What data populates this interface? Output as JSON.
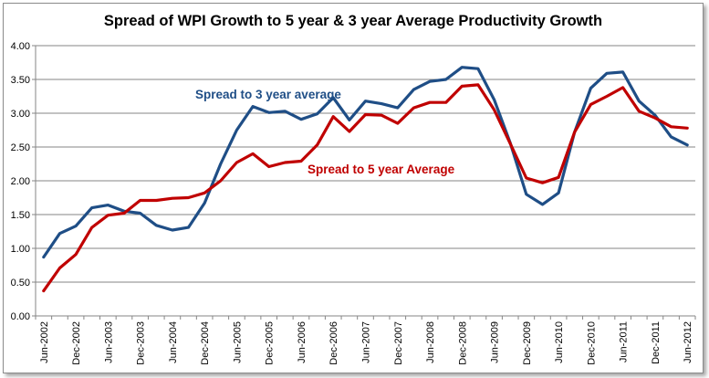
{
  "chart_data": {
    "type": "line",
    "title": "Spread of WPI Growth to 5 year & 3 year Average Productivity Growth",
    "xlabel": "",
    "ylabel": "",
    "ylim": [
      0,
      4
    ],
    "yticks": [
      "0.00",
      "0.50",
      "1.00",
      "1.50",
      "2.00",
      "2.50",
      "3.00",
      "3.50",
      "4.00"
    ],
    "grid": true,
    "x_labels": [
      "Jun-2002",
      "Dec-2002",
      "Jun-2003",
      "Dec-2003",
      "Jun-2004",
      "Dec-2004",
      "Jun-2005",
      "Dec-2005",
      "Jun-2006",
      "Dec-2006",
      "Jun-2007",
      "Dec-2007",
      "Jun-2008",
      "Dec-2008",
      "Jun-2009",
      "Dec-2009",
      "Jun-2010",
      "Dec-2010",
      "Jun-2011",
      "Dec-2011",
      "Jun-2012"
    ],
    "x": [
      "Jun-2002",
      "Sep-2002",
      "Dec-2002",
      "Mar-2003",
      "Jun-2003",
      "Sep-2003",
      "Dec-2003",
      "Mar-2004",
      "Jun-2004",
      "Sep-2004",
      "Dec-2004",
      "Mar-2005",
      "Jun-2005",
      "Sep-2005",
      "Dec-2005",
      "Mar-2006",
      "Jun-2006",
      "Sep-2006",
      "Dec-2006",
      "Mar-2007",
      "Jun-2007",
      "Sep-2007",
      "Dec-2007",
      "Mar-2008",
      "Jun-2008",
      "Sep-2008",
      "Dec-2008",
      "Mar-2009",
      "Jun-2009",
      "Sep-2009",
      "Dec-2009",
      "Mar-2010",
      "Jun-2010",
      "Sep-2010",
      "Dec-2010",
      "Mar-2011",
      "Jun-2011",
      "Sep-2011",
      "Dec-2011",
      "Mar-2012",
      "Jun-2012"
    ],
    "series": [
      {
        "name": "Spread to 3 year average",
        "color": "#1f4e86",
        "values": [
          0.87,
          1.22,
          1.33,
          1.6,
          1.64,
          1.55,
          1.52,
          1.34,
          1.27,
          1.31,
          1.67,
          2.25,
          2.75,
          3.1,
          3.01,
          3.03,
          2.91,
          2.99,
          3.23,
          2.9,
          3.18,
          3.14,
          3.08,
          3.35,
          3.47,
          3.5,
          3.68,
          3.66,
          3.2,
          2.56,
          1.8,
          1.65,
          1.82,
          2.72,
          3.37,
          3.59,
          3.61,
          3.18,
          2.97,
          2.65,
          2.53
        ]
      },
      {
        "name": "Spread to 5 year Average",
        "color": "#c00000",
        "values": [
          0.37,
          0.71,
          0.91,
          1.31,
          1.49,
          1.52,
          1.71,
          1.71,
          1.74,
          1.75,
          1.82,
          2.0,
          2.27,
          2.4,
          2.21,
          2.27,
          2.29,
          2.53,
          2.95,
          2.73,
          2.98,
          2.97,
          2.85,
          3.08,
          3.16,
          3.16,
          3.4,
          3.42,
          3.05,
          2.55,
          2.04,
          1.97,
          2.05,
          2.72,
          3.13,
          3.25,
          3.38,
          3.03,
          2.93,
          2.8,
          2.78
        ]
      }
    ],
    "annotations": [
      {
        "text": "Spread to 3 year average",
        "series": 0,
        "color": "#1f4e86"
      },
      {
        "text": "Spread to 5 year Average",
        "series": 1,
        "color": "#c00000"
      }
    ]
  }
}
